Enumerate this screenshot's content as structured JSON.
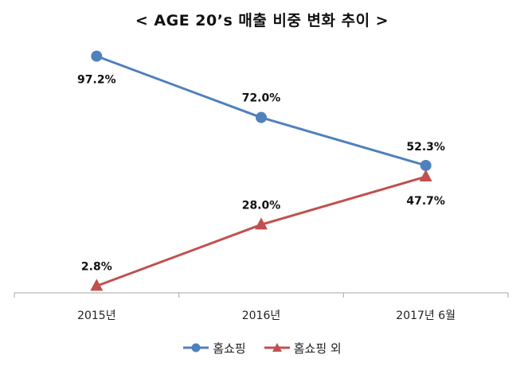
{
  "chart_data": {
    "type": "line",
    "title": "< AGE 20’s 매출 비중 변화 추이 >",
    "categories": [
      "2015년",
      "2016년",
      "2017년 6월"
    ],
    "series": [
      {
        "name": "홈쇼핑",
        "values": [
          97.2,
          72.0,
          52.3
        ],
        "labels": [
          "97.2%",
          "72.0%",
          "52.3%"
        ],
        "color": "#4f81bd",
        "marker": "circle"
      },
      {
        "name": "홈쇼핑 외",
        "values": [
          2.8,
          28.0,
          47.7
        ],
        "labels": [
          "2.8%",
          "28.0%",
          "47.7%"
        ],
        "color": "#c0504d",
        "marker": "triangle"
      }
    ],
    "ylim": [
      0,
      100
    ],
    "grid": false,
    "legend": "bottom"
  }
}
